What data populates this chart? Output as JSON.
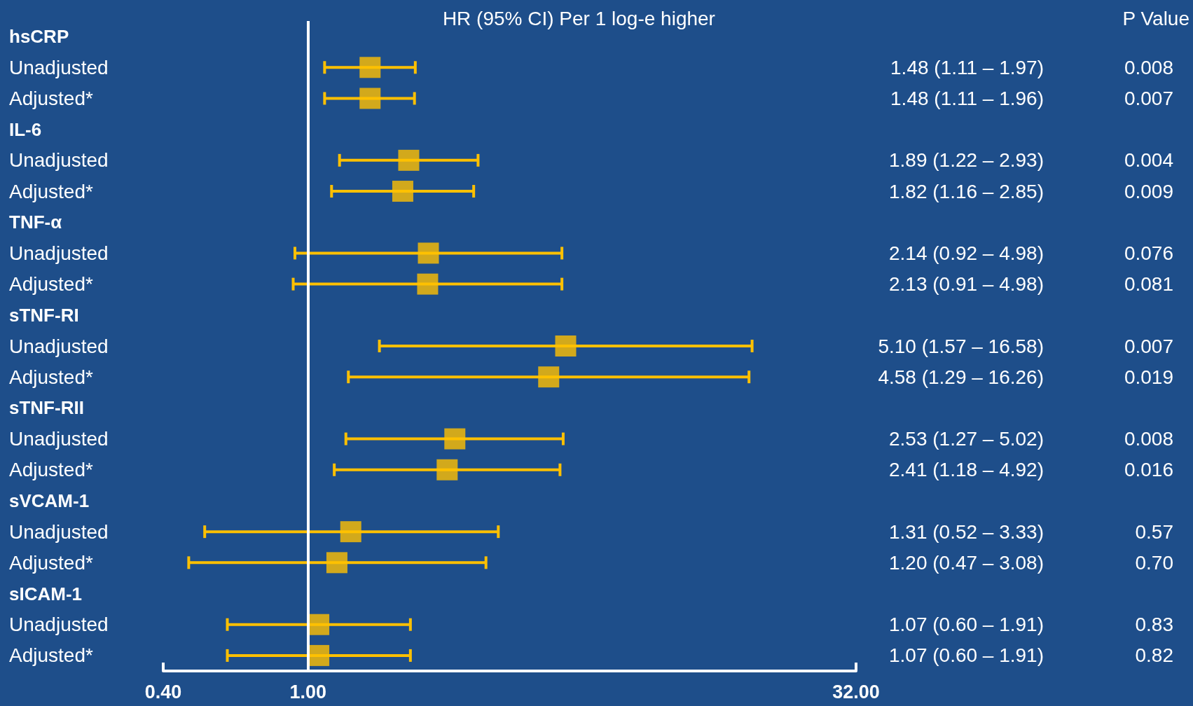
{
  "chart_data": {
    "type": "scatter",
    "orientation": "horizontal",
    "title": "HR (95% CI) Per 1 log-e higher",
    "categories": [
      "hsCRP",
      "Unadjusted",
      "Adjusted*",
      "IL-6",
      "Unadjusted",
      "Adjusted*",
      "TNF-α",
      "Unadjusted",
      "Adjusted*",
      "sTNF-RI",
      "Unadjusted",
      "Adjusted*",
      "sTNF-RII",
      "Unadjusted",
      "Adjusted*",
      "sVCAM-1",
      "Unadjusted",
      "Adjusted*",
      "sICAM-1",
      "Unadjusted",
      "Adjusted*"
    ],
    "values": [
      null,
      1.48,
      1.48,
      null,
      1.89,
      1.82,
      null,
      2.14,
      2.13,
      null,
      5.1,
      4.58,
      null,
      2.53,
      2.41,
      null,
      1.31,
      1.2,
      null,
      1.07,
      1.07
    ],
    "errors": [
      null,
      [
        1.11,
        1.97
      ],
      [
        1.11,
        1.96
      ],
      null,
      [
        1.22,
        2.93
      ],
      [
        1.16,
        2.85
      ],
      null,
      [
        0.92,
        4.98
      ],
      [
        0.91,
        4.98
      ],
      null,
      [
        1.57,
        16.58
      ],
      [
        1.29,
        16.26
      ],
      null,
      [
        1.27,
        5.02
      ],
      [
        1.18,
        4.92
      ],
      null,
      [
        0.52,
        3.33
      ],
      [
        0.47,
        3.08
      ],
      null,
      [
        0.6,
        1.91
      ],
      [
        0.6,
        1.91
      ]
    ],
    "value_labels": [
      null,
      "1.48 (1.11 – 1.97)",
      "1.48 (1.11 – 1.96)",
      null,
      "1.89 (1.22 – 2.93)",
      "1.82 (1.16 – 2.85)",
      null,
      "2.14 (0.92 – 4.98)",
      "2.13 (0.91 – 4.98)",
      null,
      "5.10 (1.57 – 16.58)",
      "4.58 (1.29 – 16.26)",
      null,
      "2.53 (1.27 – 5.02)",
      "2.41 (1.18 – 4.92)",
      null,
      "1.31 (0.52 – 3.33)",
      "1.20 (0.47 – 3.08)",
      null,
      "1.07 (0.60 – 1.91)",
      "1.07 (0.60 – 1.91)"
    ],
    "annotations": [
      "P Value",
      "0.008",
      "0.007",
      "0.004",
      "0.009",
      "0.076",
      "0.081",
      "0.007",
      "0.019",
      "0.008",
      "0.016",
      "0.57",
      "0.70",
      "0.83",
      "0.82"
    ],
    "color": "#ffc000",
    "marker": "square",
    "log": "x",
    "xlim": [
      0.4,
      32
    ],
    "xticks": [
      {
        "value": 0.4,
        "label": "0.40"
      },
      {
        "value": 1,
        "label": "1.00"
      },
      {
        "value": 32,
        "label": "32.00"
      }
    ],
    "ref_lines": [
      {
        "axis": "x",
        "value": 1,
        "color": "#ffffff"
      }
    ],
    "grid": false
  }
}
